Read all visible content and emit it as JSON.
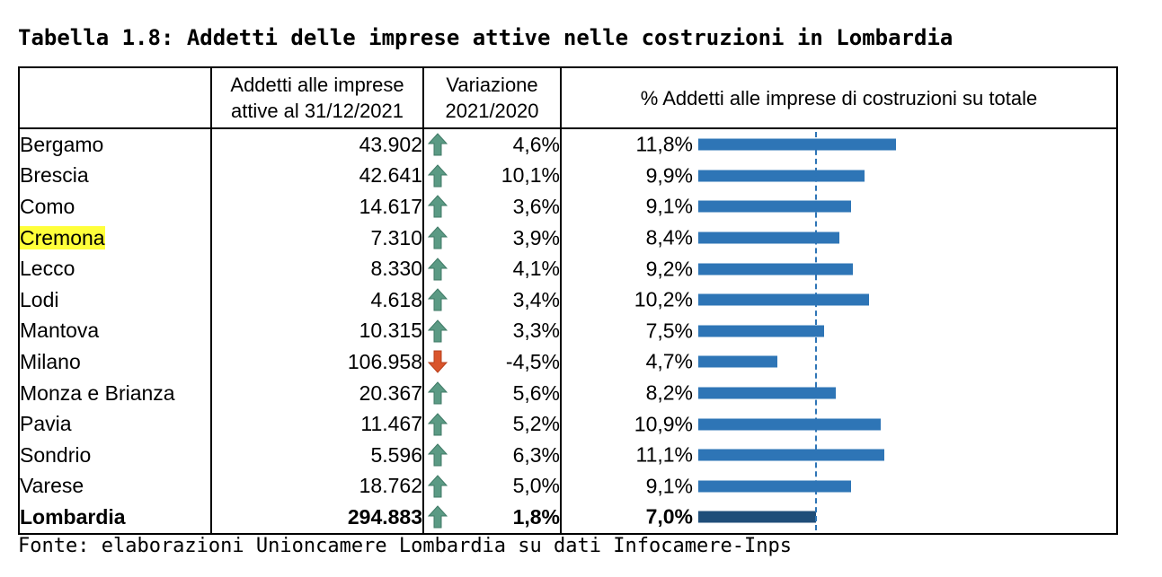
{
  "title": "Tabella 1.8: Addetti delle imprese attive nelle costruzioni in Lombardia",
  "footer": "Fonte: elaborazioni Unioncamere Lombardia su dati Infocamere-Inps",
  "headers": {
    "col1": "",
    "col2_line1": "Addetti alle imprese",
    "col2_line2": "attive al 31/12/2021",
    "col3_line1": "Variazione",
    "col3_line2": "2021/2020",
    "col4": "% Addetti alle imprese di costruzioni su totale"
  },
  "colors": {
    "bar": "#2e75b6",
    "total_bar": "#1f4e79",
    "up_arrow": "#5b9a84",
    "down_arrow": "#d9542b",
    "highlight": "#ffff3a"
  },
  "rows": [
    {
      "name": "Bergamo",
      "addetti": "43.902",
      "arrow": "up",
      "var": "4,6%",
      "pct_label": "11,8%",
      "pct": 11.8
    },
    {
      "name": "Brescia",
      "addetti": "42.641",
      "arrow": "up",
      "var": "10,1%",
      "pct_label": "9,9%",
      "pct": 9.9
    },
    {
      "name": "Como",
      "addetti": "14.617",
      "arrow": "up",
      "var": "3,6%",
      "pct_label": "9,1%",
      "pct": 9.1
    },
    {
      "name": "Cremona",
      "addetti": "7.310",
      "arrow": "up",
      "var": "3,9%",
      "pct_label": "8,4%",
      "pct": 8.4,
      "highlight": true
    },
    {
      "name": "Lecco",
      "addetti": "8.330",
      "arrow": "up",
      "var": "4,1%",
      "pct_label": "9,2%",
      "pct": 9.2
    },
    {
      "name": "Lodi",
      "addetti": "4.618",
      "arrow": "up",
      "var": "3,4%",
      "pct_label": "10,2%",
      "pct": 10.2
    },
    {
      "name": "Mantova",
      "addetti": "10.315",
      "arrow": "up",
      "var": "3,3%",
      "pct_label": "7,5%",
      "pct": 7.5
    },
    {
      "name": "Milano",
      "addetti": "106.958",
      "arrow": "down",
      "var": "-4,5%",
      "pct_label": "4,7%",
      "pct": 4.7
    },
    {
      "name": "Monza e Brianza",
      "addetti": "20.367",
      "arrow": "up",
      "var": "5,6%",
      "pct_label": "8,2%",
      "pct": 8.2
    },
    {
      "name": "Pavia",
      "addetti": "11.467",
      "arrow": "up",
      "var": "5,2%",
      "pct_label": "10,9%",
      "pct": 10.9
    },
    {
      "name": "Sondrio",
      "addetti": "5.596",
      "arrow": "up",
      "var": "6,3%",
      "pct_label": "11,1%",
      "pct": 11.1
    },
    {
      "name": "Varese",
      "addetti": "18.762",
      "arrow": "up",
      "var": "5,0%",
      "pct_label": "9,1%",
      "pct": 9.1
    },
    {
      "name": "Lombardia",
      "addetti": "294.883",
      "arrow": "up",
      "var": "1,8%",
      "pct_label": "7,0%",
      "pct": 7.0,
      "total": true
    }
  ],
  "reference_line_pct": 7.0
}
